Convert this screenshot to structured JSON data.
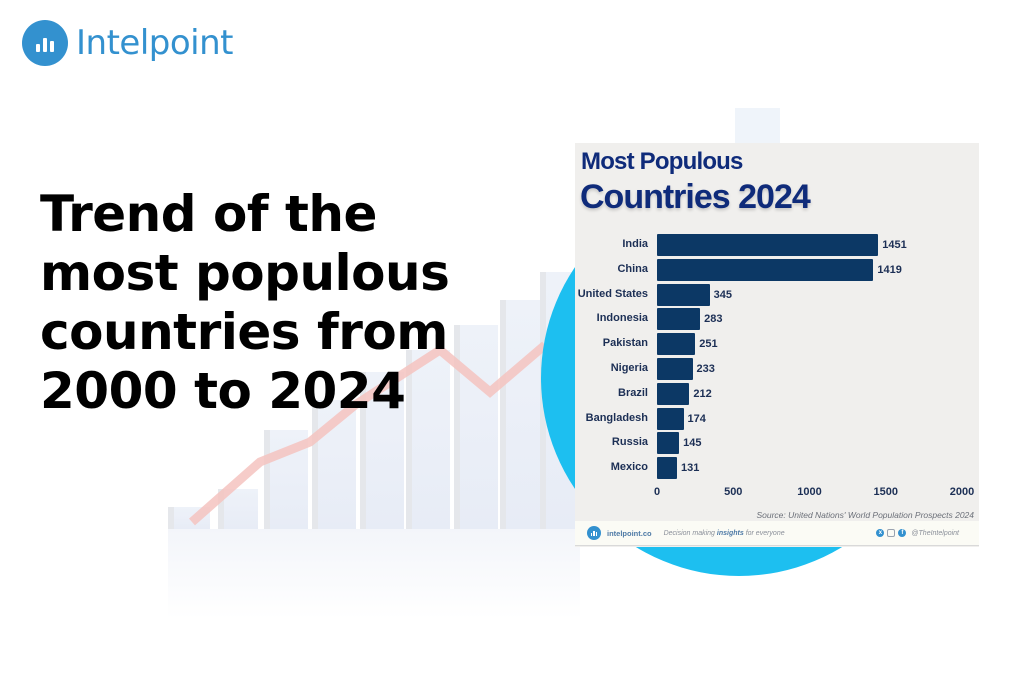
{
  "brand": {
    "name": "Intelpoint",
    "color": "#3391cf"
  },
  "headline": {
    "lines": [
      "Trend of the",
      "most populous",
      "countries from",
      "2000 to 2024"
    ]
  },
  "colors": {
    "circle": "#1dbff0",
    "card_bg": "#f0efed",
    "bar": "#0c3865",
    "title": "#0f2b7a",
    "trend_line": "#f2b6b3"
  },
  "card": {
    "title_line1": "Most Populous",
    "title_line2": "Countries 2024",
    "source": "Source: United Nations' World Population Prospects 2024",
    "footer": {
      "site": "intelpoint.co",
      "tagline_pre": "Decision making ",
      "tagline_bold": "insights",
      "tagline_post": " for everyone",
      "social_icons": [
        "x-icon",
        "instagram-icon",
        "facebook-icon"
      ],
      "handle": "@TheIntelpoint"
    }
  },
  "chart_data": {
    "type": "bar",
    "orientation": "horizontal",
    "title": "Most Populous Countries 2024",
    "categories": [
      "India",
      "China",
      "United States",
      "Indonesia",
      "Pakistan",
      "Nigeria",
      "Brazil",
      "Bangladesh",
      "Russia",
      "Mexico"
    ],
    "values": [
      1451,
      1419,
      345,
      283,
      251,
      233,
      212,
      174,
      145,
      131
    ],
    "xlabel": "",
    "ylabel": "",
    "xlim": [
      0,
      2000
    ],
    "x_ticks": [
      0,
      500,
      1000,
      1500,
      2000
    ],
    "grid": false,
    "data_labels": true,
    "source": "Source: United Nations' World Population Prospects 2024"
  }
}
